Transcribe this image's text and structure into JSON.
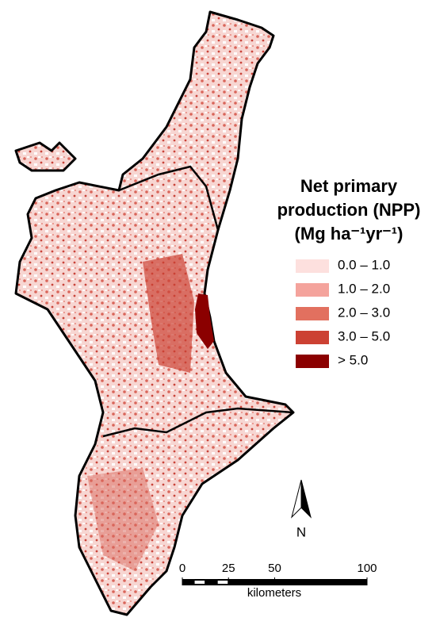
{
  "legend": {
    "title": [
      "Net primary",
      "production (NPP)",
      "(Mg ha⁻¹yr⁻¹)"
    ],
    "items": [
      {
        "label": "0.0 – 1.0",
        "color": "#fde0de"
      },
      {
        "label": "1.0 – 2.0",
        "color": "#f4a39c"
      },
      {
        "label": "2.0 – 3.0",
        "color": "#e2705f"
      },
      {
        "label": "3.0 – 5.0",
        "color": "#cc4133"
      },
      {
        "label": "> 5.0",
        "color": "#8b0000"
      }
    ]
  },
  "scale_bar": {
    "ticks": [
      0,
      25,
      50,
      100
    ],
    "unit": "kilometers"
  },
  "north": "N"
}
